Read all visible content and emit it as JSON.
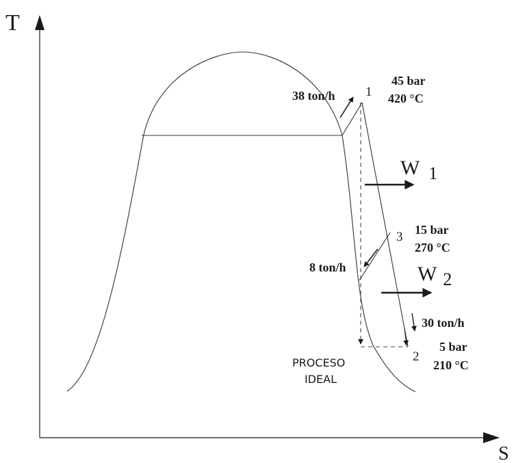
{
  "axes": {
    "y_label": "T",
    "x_label": "S"
  },
  "points": {
    "p1": {
      "number": "1",
      "pressure": "45 bar",
      "temperature": "420 °C"
    },
    "p3": {
      "number": "3",
      "pressure": "15 bar",
      "temperature": "270 °C"
    },
    "p2": {
      "number": "2",
      "pressure": "5 bar",
      "temperature": "210 °C"
    }
  },
  "flows": {
    "inlet": "38 ton/h",
    "extraction": "8 ton/h",
    "outlet": "30 ton/h"
  },
  "work": {
    "w1": {
      "letter": "W",
      "subscript": "1"
    },
    "w2": {
      "letter": "W",
      "subscript": "2"
    }
  },
  "ideal_process": {
    "line1": "PROCESO",
    "line2": "IDEAL"
  },
  "colors": {
    "ink": "#1a1a1a"
  }
}
